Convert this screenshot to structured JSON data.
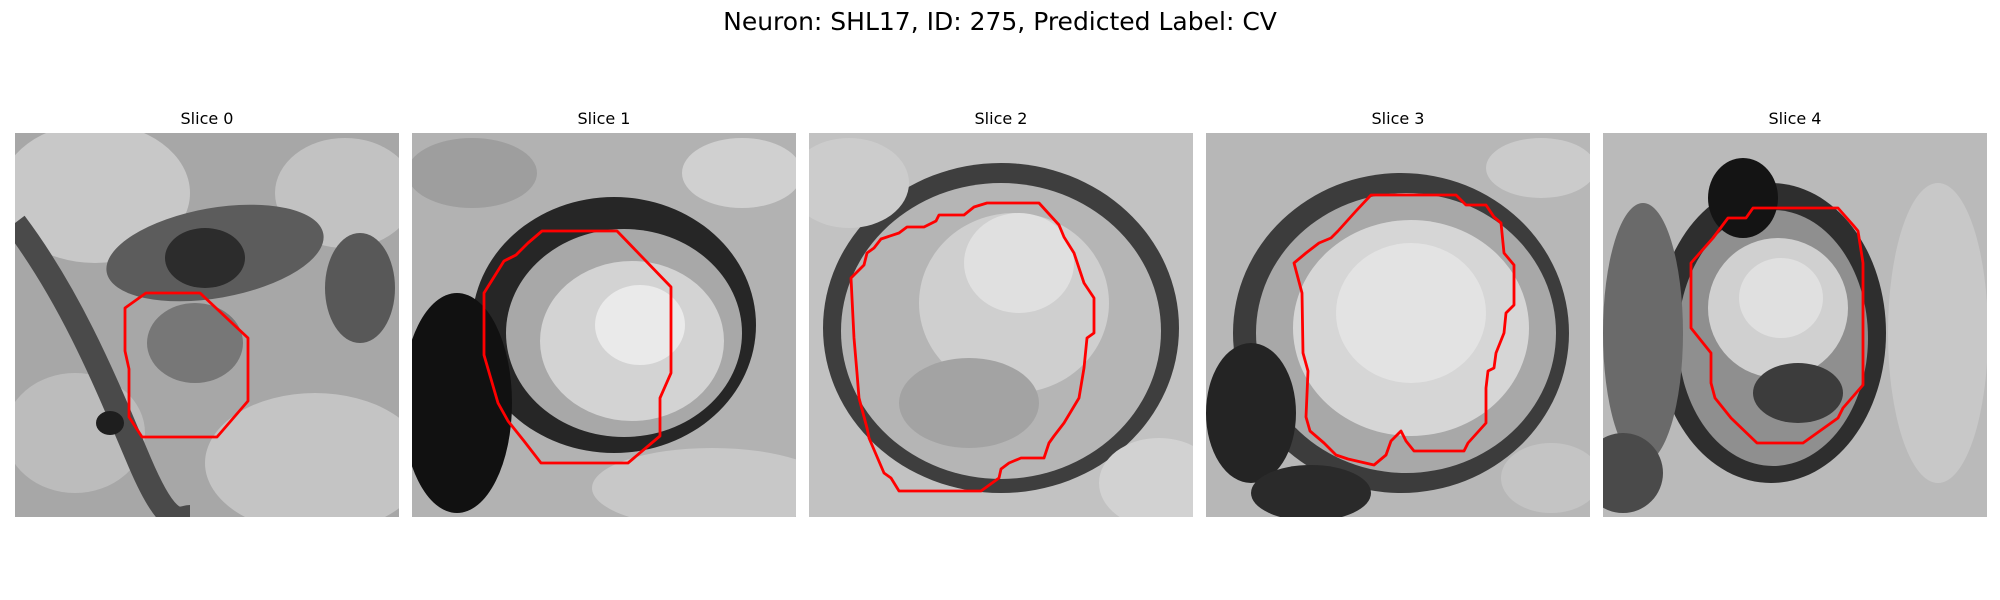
{
  "figure": {
    "title": "Neuron: SHL17, ID: 275, Predicted Label: CV"
  },
  "panels": [
    {
      "title": "Slice 0",
      "image": {
        "colormap": "grayscale",
        "content": "noisy grayscale microscopy patch, dark diagonal band from top-left to lower-center"
      },
      "outline_color": "#ff0000"
    },
    {
      "title": "Slice 1",
      "image": {
        "colormap": "grayscale",
        "content": "bright rounded cell body surrounded by dark membrane ring, dark region at left"
      },
      "outline_color": "#ff0000"
    },
    {
      "title": "Slice 2",
      "image": {
        "colormap": "grayscale",
        "content": "large bright textured cell body within dark ring"
      },
      "outline_color": "#ff0000"
    },
    {
      "title": "Slice 3",
      "image": {
        "colormap": "grayscale",
        "content": "bright rounded cell body with dark ring, dark area lower-left"
      },
      "outline_color": "#ff0000"
    },
    {
      "title": "Slice 4",
      "image": {
        "colormap": "grayscale",
        "content": "smaller bright cell body within dark oval ring"
      },
      "outline_color": "#ff0000"
    }
  ]
}
